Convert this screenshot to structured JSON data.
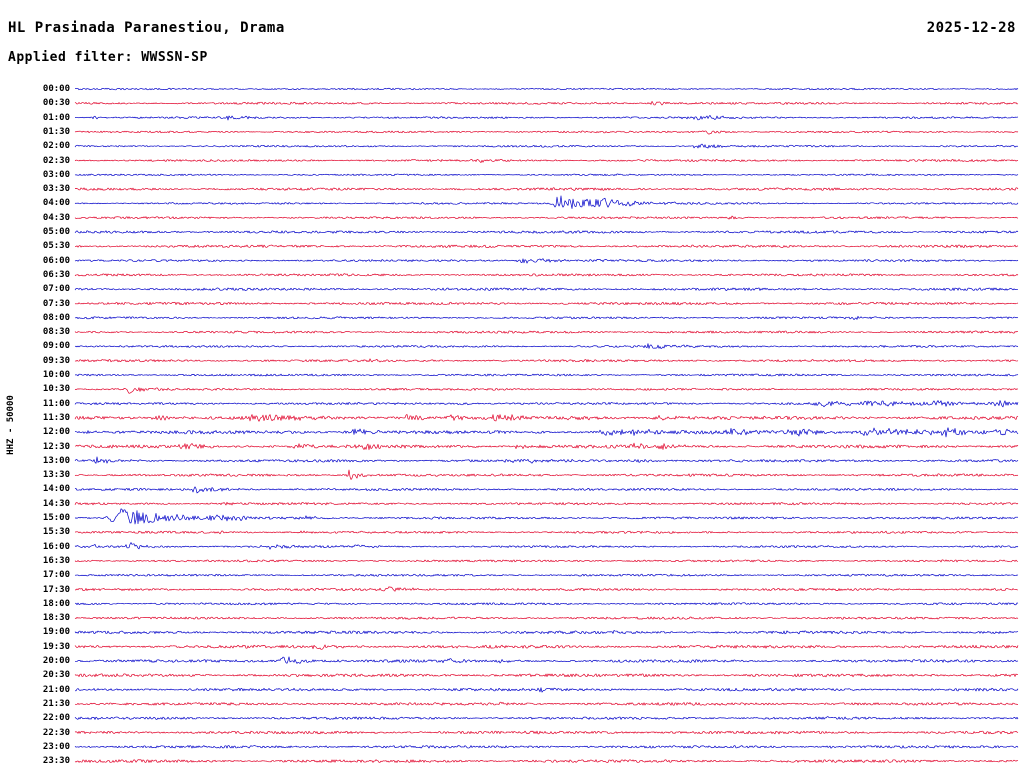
{
  "header": {
    "title": "HL Prasinada Paranestiou, Drama",
    "date": "2025-12-28",
    "filter": "Applied filter: WWSSN-SP"
  },
  "axis": {
    "ylabel": "HHZ - 50000"
  },
  "colors": {
    "blue": "#0000c8",
    "red": "#e00028",
    "text": "#000000",
    "background": "#ffffff"
  },
  "chart_data": {
    "type": "line",
    "kind": "helicorder-seismogram",
    "minutes_per_row": 30,
    "events_format": "[x_fraction_of_row, amplitude_px, rise_px, decay_px]",
    "rows": [
      {
        "label": "00:00",
        "color": "blue",
        "noise": 0.7,
        "events": []
      },
      {
        "label": "00:30",
        "color": "red",
        "noise": 0.9,
        "events": [
          [
            0.616,
            3,
            10,
            18
          ]
        ]
      },
      {
        "label": "01:00",
        "color": "blue",
        "noise": 0.8,
        "events": [
          [
            0.021,
            2,
            4,
            8
          ],
          [
            0.168,
            2.5,
            8,
            14
          ],
          [
            0.664,
            2,
            15,
            30
          ]
        ]
      },
      {
        "label": "01:30",
        "color": "red",
        "noise": 0.8,
        "events": [
          [
            0.675,
            2.5,
            10,
            20
          ]
        ]
      },
      {
        "label": "02:00",
        "color": "blue",
        "noise": 0.8,
        "events": [
          [
            0.664,
            3,
            8,
            25
          ]
        ]
      },
      {
        "label": "02:30",
        "color": "red",
        "noise": 0.9,
        "events": [
          [
            0.432,
            2,
            3,
            6
          ]
        ]
      },
      {
        "label": "03:00",
        "color": "blue",
        "noise": 0.7,
        "events": []
      },
      {
        "label": "03:30",
        "color": "red",
        "noise": 1.1,
        "events": [
          [
            0.515,
            1.5,
            5,
            10
          ]
        ]
      },
      {
        "label": "04:00",
        "color": "blue",
        "noise": 0.8,
        "events": [
          [
            0.513,
            9,
            5,
            40
          ],
          [
            0.56,
            3,
            10,
            25
          ]
        ]
      },
      {
        "label": "04:30",
        "color": "red",
        "noise": 0.9,
        "events": [
          [
            0.696,
            2.2,
            4,
            8
          ]
        ]
      },
      {
        "label": "05:00",
        "color": "blue",
        "noise": 1.1,
        "events": []
      },
      {
        "label": "05:30",
        "color": "red",
        "noise": 1.1,
        "events": []
      },
      {
        "label": "06:00",
        "color": "blue",
        "noise": 0.9,
        "events": [
          [
            0.476,
            3.5,
            6,
            25
          ],
          [
            0.558,
            1.8,
            8,
            12
          ]
        ]
      },
      {
        "label": "06:30",
        "color": "red",
        "noise": 1.0,
        "events": []
      },
      {
        "label": "07:00",
        "color": "blue",
        "noise": 1.1,
        "events": []
      },
      {
        "label": "07:30",
        "color": "red",
        "noise": 1.1,
        "events": []
      },
      {
        "label": "08:00",
        "color": "blue",
        "noise": 0.9,
        "events": [
          [
            0.829,
            2,
            4,
            8
          ]
        ]
      },
      {
        "label": "08:30",
        "color": "red",
        "noise": 1.0,
        "events": []
      },
      {
        "label": "09:00",
        "color": "blue",
        "noise": 0.9,
        "events": [
          [
            0.611,
            3,
            8,
            30
          ]
        ]
      },
      {
        "label": "09:30",
        "color": "red",
        "noise": 1.0,
        "events": [
          [
            0.313,
            1.8,
            4,
            8
          ]
        ]
      },
      {
        "label": "10:00",
        "color": "blue",
        "noise": 0.9,
        "events": []
      },
      {
        "label": "10:30",
        "color": "red",
        "noise": 0.9,
        "events": [
          [
            0.058,
            4,
            5,
            18
          ]
        ]
      },
      {
        "label": "11:00",
        "color": "blue",
        "noise": 1.0,
        "events": [
          [
            0.409,
            1.6,
            5,
            10
          ],
          [
            0.8,
            2.5,
            20,
            30
          ],
          [
            0.855,
            3,
            18,
            25
          ],
          [
            0.92,
            3,
            20,
            30
          ],
          [
            0.985,
            3,
            12,
            15
          ]
        ]
      },
      {
        "label": "11:30",
        "color": "red",
        "noise": 1.5,
        "events": [
          [
            0.09,
            3.5,
            6,
            12
          ],
          [
            0.2,
            4,
            18,
            25
          ],
          [
            0.356,
            4,
            12,
            18
          ],
          [
            0.404,
            3,
            8,
            12
          ],
          [
            0.452,
            3.5,
            10,
            15
          ],
          [
            0.53,
            2.5,
            10,
            15
          ],
          [
            0.62,
            2.2,
            10,
            15
          ]
        ]
      },
      {
        "label": "12:00",
        "color": "blue",
        "noise": 1.5,
        "events": [
          [
            0.016,
            2.5,
            5,
            10
          ],
          [
            0.298,
            3.5,
            8,
            14
          ],
          [
            0.569,
            3,
            12,
            20
          ],
          [
            0.6,
            3,
            10,
            15
          ],
          [
            0.7,
            3.5,
            10,
            18
          ],
          [
            0.77,
            3.5,
            20,
            30
          ],
          [
            0.855,
            4,
            20,
            30
          ],
          [
            0.925,
            3.5,
            18,
            25
          ],
          [
            0.985,
            3,
            10,
            12
          ]
        ]
      },
      {
        "label": "12:30",
        "color": "red",
        "noise": 1.4,
        "events": [
          [
            0.122,
            3,
            12,
            20
          ],
          [
            0.239,
            2.5,
            8,
            14
          ],
          [
            0.308,
            3,
            8,
            14
          ],
          [
            0.473,
            2.5,
            8,
            12
          ],
          [
            0.6,
            3,
            12,
            18
          ],
          [
            0.627,
            2.5,
            8,
            12
          ]
        ]
      },
      {
        "label": "13:00",
        "color": "blue",
        "noise": 1.1,
        "events": [
          [
            0.021,
            3.5,
            5,
            20
          ],
          [
            0.473,
            2,
            15,
            25
          ],
          [
            0.6,
            2,
            12,
            20
          ]
        ]
      },
      {
        "label": "13:30",
        "color": "red",
        "noise": 1.1,
        "events": [
          [
            0.292,
            7,
            4,
            10
          ]
        ]
      },
      {
        "label": "14:00",
        "color": "blue",
        "noise": 1.0,
        "events": [
          [
            0.13,
            4,
            5,
            20
          ]
        ]
      },
      {
        "label": "14:30",
        "color": "red",
        "noise": 1.0,
        "events": [
          [
            0.16,
            1.5,
            4,
            8
          ]
        ]
      },
      {
        "label": "15:00",
        "color": "blue",
        "noise": 1.0,
        "events": [
          [
            0.0425,
            13,
            7,
            45
          ],
          [
            0.156,
            2.5,
            10,
            18
          ],
          [
            0.244,
            2,
            8,
            12
          ]
        ]
      },
      {
        "label": "15:30",
        "color": "red",
        "noise": 1.0,
        "events": [
          [
            0.154,
            1.6,
            4,
            8
          ],
          [
            0.239,
            1.6,
            4,
            8
          ]
        ]
      },
      {
        "label": "16:00",
        "color": "blue",
        "noise": 0.9,
        "events": [
          [
            0.021,
            3,
            3,
            6
          ],
          [
            0.058,
            4,
            5,
            15
          ],
          [
            0.207,
            2.5,
            12,
            18
          ],
          [
            0.3,
            1.8,
            6,
            10
          ]
        ]
      },
      {
        "label": "16:30",
        "color": "red",
        "noise": 0.9,
        "events": []
      },
      {
        "label": "17:00",
        "color": "blue",
        "noise": 0.9,
        "events": []
      },
      {
        "label": "17:30",
        "color": "red",
        "noise": 1.0,
        "events": [
          [
            0.335,
            3,
            8,
            20
          ]
        ]
      },
      {
        "label": "18:00",
        "color": "blue",
        "noise": 0.9,
        "events": []
      },
      {
        "label": "18:30",
        "color": "red",
        "noise": 1.0,
        "events": []
      },
      {
        "label": "19:00",
        "color": "blue",
        "noise": 1.2,
        "events": [
          [
            0.568,
            2,
            6,
            10
          ],
          [
            0.755,
            2.5,
            5,
            12
          ]
        ]
      },
      {
        "label": "19:30",
        "color": "red",
        "noise": 1.3,
        "events": [
          [
            0.26,
            3.5,
            10,
            18
          ]
        ]
      },
      {
        "label": "20:00",
        "color": "blue",
        "noise": 1.2,
        "events": [
          [
            0.221,
            5,
            4,
            22
          ],
          [
            0.4,
            2,
            8,
            12
          ],
          [
            0.452,
            2,
            8,
            12
          ]
        ]
      },
      {
        "label": "20:30",
        "color": "red",
        "noise": 1.3,
        "events": []
      },
      {
        "label": "21:00",
        "color": "blue",
        "noise": 1.2,
        "events": [
          [
            0.494,
            2.5,
            4,
            10
          ]
        ]
      },
      {
        "label": "21:30",
        "color": "red",
        "noise": 1.2,
        "events": [
          [
            0.452,
            1.5,
            4,
            8
          ]
        ]
      },
      {
        "label": "22:00",
        "color": "blue",
        "noise": 1.1,
        "events": [
          [
            0.797,
            1.5,
            4,
            8
          ]
        ]
      },
      {
        "label": "22:30",
        "color": "red",
        "noise": 1.2,
        "events": []
      },
      {
        "label": "23:00",
        "color": "blue",
        "noise": 1.1,
        "events": [
          [
            0.26,
            1.5,
            4,
            8
          ],
          [
            0.797,
            1.6,
            4,
            8
          ]
        ]
      },
      {
        "label": "23:30",
        "color": "red",
        "noise": 1.2,
        "events": []
      }
    ]
  }
}
